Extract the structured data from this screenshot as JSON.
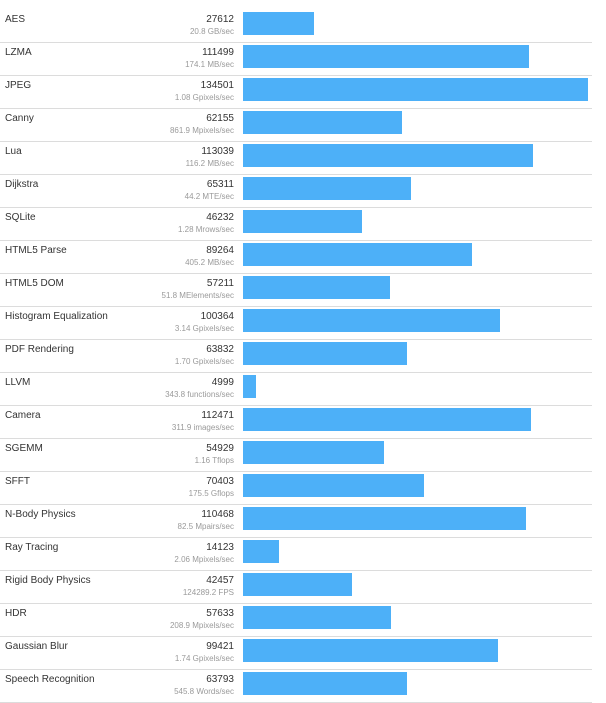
{
  "chart_data": {
    "type": "bar",
    "orientation": "horizontal",
    "title": "",
    "xlabel": "",
    "ylabel": "",
    "xlim": [
      0,
      134501
    ],
    "bar_color": "#4db0f8",
    "categories": [
      "AES",
      "LZMA",
      "JPEG",
      "Canny",
      "Lua",
      "Dijkstra",
      "SQLite",
      "HTML5 Parse",
      "HTML5 DOM",
      "Histogram Equalization",
      "PDF Rendering",
      "LLVM",
      "Camera",
      "SGEMM",
      "SFFT",
      "N-Body Physics",
      "Ray Tracing",
      "Rigid Body Physics",
      "HDR",
      "Gaussian Blur",
      "Speech Recognition"
    ],
    "values": [
      27612,
      111499,
      134501,
      62155,
      113039,
      65311,
      46232,
      89264,
      57211,
      100364,
      63832,
      4999,
      112471,
      54929,
      70403,
      110468,
      14123,
      42457,
      57633,
      99421,
      63793
    ],
    "rates": [
      "20.8 GB/sec",
      "174.1 MB/sec",
      "1.08 Gpixels/sec",
      "861.9 Mpixels/sec",
      "116.2 MB/sec",
      "44.2 MTE/sec",
      "1.28 Mrows/sec",
      "405.2 MB/sec",
      "51.8 MElements/sec",
      "3.14 Gpixels/sec",
      "1.70 Gpixels/sec",
      "343.8 functions/sec",
      "311.9 images/sec",
      "1.16 Tflops",
      "175.5 Gflops",
      "82.5 Mpairs/sec",
      "2.06 Mpixels/sec",
      "124289.2 FPS",
      "208.9 Mpixels/sec",
      "1.74 Gpixels/sec",
      "545.8 Words/sec"
    ]
  }
}
